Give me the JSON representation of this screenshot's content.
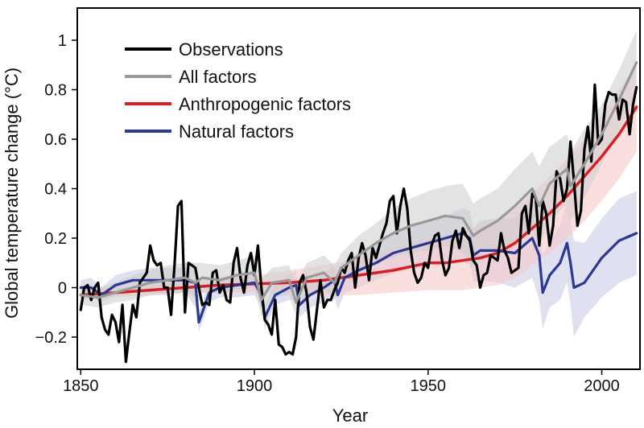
{
  "chart_data": {
    "type": "line",
    "xlabel": "Year",
    "ylabel": "Global temperature change (°C)",
    "xlim": [
      1849,
      2011
    ],
    "ylim": [
      -0.33,
      1.13
    ],
    "x_ticks": [
      1850,
      1900,
      1950,
      2000
    ],
    "x_tick_labels": [
      "1850",
      "1900",
      "1950",
      "2000"
    ],
    "y_ticks": [
      -0.2,
      0,
      0.2,
      0.4,
      0.6,
      0.8,
      1
    ],
    "y_tick_labels": [
      "−0.2",
      "0",
      "0.2",
      "0.4",
      "0.6",
      "0.8",
      "1"
    ],
    "legend_position": "top-left",
    "legend": [
      "Observations",
      "All factors",
      "Anthropogenic factors",
      "Natural factors"
    ],
    "series": [
      {
        "name": "Observations",
        "color": "#000000",
        "x": [
          1850,
          1851,
          1852,
          1853,
          1854,
          1855,
          1856,
          1857,
          1858,
          1859,
          1860,
          1861,
          1862,
          1863,
          1864,
          1865,
          1866,
          1867,
          1868,
          1869,
          1870,
          1871,
          1872,
          1873,
          1874,
          1875,
          1876,
          1877,
          1878,
          1879,
          1880,
          1881,
          1882,
          1883,
          1884,
          1885,
          1886,
          1887,
          1888,
          1889,
          1890,
          1891,
          1892,
          1893,
          1894,
          1895,
          1896,
          1897,
          1898,
          1899,
          1900,
          1901,
          1902,
          1903,
          1904,
          1905,
          1906,
          1907,
          1908,
          1909,
          1910,
          1911,
          1912,
          1913,
          1914,
          1915,
          1916,
          1917,
          1918,
          1919,
          1920,
          1921,
          1922,
          1923,
          1924,
          1925,
          1926,
          1927,
          1928,
          1929,
          1930,
          1931,
          1932,
          1933,
          1934,
          1935,
          1936,
          1937,
          1938,
          1939,
          1940,
          1941,
          1942,
          1943,
          1944,
          1945,
          1946,
          1947,
          1948,
          1949,
          1950,
          1951,
          1952,
          1953,
          1954,
          1955,
          1956,
          1957,
          1958,
          1959,
          1960,
          1961,
          1962,
          1963,
          1964,
          1965,
          1966,
          1967,
          1968,
          1969,
          1970,
          1971,
          1972,
          1973,
          1974,
          1975,
          1976,
          1977,
          1978,
          1979,
          1980,
          1981,
          1982,
          1983,
          1984,
          1985,
          1986,
          1987,
          1988,
          1989,
          1990,
          1991,
          1992,
          1993,
          1994,
          1995,
          1996,
          1997,
          1998,
          1999,
          2000,
          2001,
          2002,
          2003,
          2004,
          2005,
          2006,
          2007,
          2008,
          2009,
          2010
        ],
        "values": [
          -0.09,
          0.0,
          0.01,
          -0.05,
          0.0,
          0.02,
          -0.12,
          -0.17,
          -0.19,
          -0.11,
          -0.14,
          -0.22,
          -0.07,
          -0.3,
          -0.18,
          -0.07,
          -0.12,
          0.02,
          0.04,
          0.06,
          0.17,
          0.11,
          0.09,
          0.1,
          0.0,
          0.0,
          -0.11,
          0.09,
          0.33,
          0.35,
          -0.1,
          0.1,
          0.09,
          0.08,
          0.0,
          -0.07,
          -0.06,
          -0.07,
          0.06,
          0.07,
          -0.02,
          0.01,
          -0.05,
          -0.06,
          0.1,
          0.16,
          0.04,
          -0.02,
          0.09,
          0.14,
          0.05,
          0.17,
          0.0,
          -0.13,
          -0.15,
          -0.19,
          -0.05,
          -0.23,
          -0.24,
          -0.27,
          -0.26,
          -0.27,
          -0.2,
          0.02,
          0.05,
          -0.02,
          -0.16,
          -0.21,
          -0.09,
          0.03,
          -0.08,
          -0.05,
          -0.05,
          -0.01,
          0.02,
          0.08,
          0.06,
          0.11,
          0.14,
          0.0,
          0.12,
          0.18,
          0.13,
          0.03,
          0.16,
          0.12,
          0.17,
          0.22,
          0.26,
          0.35,
          0.37,
          0.22,
          0.33,
          0.4,
          0.32,
          0.15,
          0.06,
          0.02,
          0.04,
          0.1,
          0.08,
          0.17,
          0.21,
          0.22,
          0.11,
          0.05,
          0.08,
          0.19,
          0.23,
          0.16,
          0.24,
          0.21,
          0.19,
          0.11,
          0.09,
          0.0,
          0.05,
          0.06,
          0.13,
          0.12,
          0.11,
          0.22,
          0.15,
          0.12,
          0.06,
          0.07,
          0.08,
          0.3,
          0.33,
          0.22,
          0.38,
          0.36,
          0.17,
          0.35,
          0.3,
          0.17,
          0.25,
          0.47,
          0.44,
          0.35,
          0.4,
          0.59,
          0.43,
          0.25,
          0.31,
          0.56,
          0.65,
          0.51,
          0.82,
          0.58,
          0.6,
          0.74,
          0.79,
          0.78,
          0.78,
          0.68,
          0.76,
          0.75,
          0.62,
          0.74,
          0.81
        ]
      },
      {
        "name": "All factors",
        "color": "#999999",
        "band_color": "#cccccc",
        "x": [
          1850,
          1855,
          1860,
          1865,
          1870,
          1875,
          1880,
          1883,
          1885,
          1890,
          1895,
          1900,
          1902,
          1905,
          1910,
          1912,
          1915,
          1920,
          1923,
          1925,
          1930,
          1935,
          1940,
          1945,
          1950,
          1955,
          1960,
          1963,
          1965,
          1970,
          1975,
          1980,
          1982,
          1985,
          1990,
          1991,
          1995,
          2000,
          2005,
          2010
        ],
        "values": [
          -0.03,
          -0.04,
          -0.02,
          0.0,
          0.02,
          0.03,
          0.04,
          0.02,
          0.04,
          0.03,
          0.05,
          0.06,
          -0.05,
          0.02,
          0.03,
          -0.06,
          0.04,
          0.06,
          0.02,
          0.08,
          0.13,
          0.18,
          0.22,
          0.25,
          0.27,
          0.29,
          0.28,
          0.21,
          0.23,
          0.27,
          0.33,
          0.4,
          0.33,
          0.42,
          0.48,
          0.41,
          0.5,
          0.62,
          0.76,
          0.91
        ],
        "band_lower": [
          -0.07,
          -0.08,
          -0.06,
          -0.05,
          -0.03,
          -0.03,
          -0.02,
          -0.08,
          -0.02,
          -0.02,
          -0.01,
          0.0,
          -0.12,
          -0.04,
          -0.03,
          -0.12,
          -0.02,
          -0.01,
          -0.05,
          0.02,
          0.05,
          0.1,
          0.12,
          0.14,
          0.15,
          0.17,
          0.14,
          0.08,
          0.1,
          0.14,
          0.18,
          0.25,
          0.17,
          0.27,
          0.34,
          0.27,
          0.36,
          0.5,
          0.64,
          0.78
        ],
        "band_upper": [
          0.01,
          0.0,
          0.02,
          0.05,
          0.07,
          0.09,
          0.1,
          0.1,
          0.1,
          0.09,
          0.11,
          0.13,
          0.03,
          0.08,
          0.09,
          0.01,
          0.1,
          0.13,
          0.09,
          0.14,
          0.21,
          0.26,
          0.32,
          0.36,
          0.39,
          0.41,
          0.42,
          0.34,
          0.36,
          0.4,
          0.48,
          0.55,
          0.49,
          0.57,
          0.62,
          0.55,
          0.64,
          0.74,
          0.88,
          1.04
        ]
      },
      {
        "name": "Anthropogenic factors",
        "color": "#d91f26",
        "band_color": "#f7c9c9",
        "x": [
          1850,
          1860,
          1870,
          1880,
          1890,
          1900,
          1910,
          1920,
          1930,
          1940,
          1950,
          1955,
          1960,
          1965,
          1970,
          1975,
          1980,
          1985,
          1990,
          1995,
          2000,
          2005,
          2010
        ],
        "values": [
          -0.03,
          -0.02,
          -0.01,
          0.0,
          0.01,
          0.015,
          0.02,
          0.03,
          0.05,
          0.07,
          0.1,
          0.1,
          0.11,
          0.12,
          0.14,
          0.18,
          0.24,
          0.3,
          0.37,
          0.45,
          0.53,
          0.62,
          0.73
        ],
        "band_lower": [
          -0.05,
          -0.04,
          -0.03,
          -0.02,
          -0.02,
          -0.02,
          -0.02,
          -0.03,
          -0.03,
          -0.02,
          -0.01,
          -0.01,
          -0.01,
          0.0,
          0.01,
          0.04,
          0.09,
          0.14,
          0.2,
          0.27,
          0.35,
          0.44,
          0.55
        ],
        "band_upper": [
          -0.01,
          0.0,
          0.01,
          0.02,
          0.04,
          0.05,
          0.07,
          0.09,
          0.12,
          0.16,
          0.2,
          0.21,
          0.23,
          0.25,
          0.27,
          0.32,
          0.38,
          0.45,
          0.52,
          0.6,
          0.7,
          0.8,
          0.9
        ]
      },
      {
        "name": "Natural factors",
        "color": "#2b3894",
        "band_color": "#c9cbe6",
        "x": [
          1850,
          1853,
          1856,
          1860,
          1865,
          1870,
          1875,
          1880,
          1883,
          1884,
          1887,
          1890,
          1895,
          1900,
          1902,
          1903,
          1906,
          1910,
          1912,
          1913,
          1916,
          1920,
          1923,
          1924,
          1926,
          1930,
          1935,
          1940,
          1945,
          1950,
          1955,
          1960,
          1962,
          1963,
          1965,
          1970,
          1975,
          1980,
          1982,
          1983,
          1985,
          1988,
          1990,
          1991,
          1992,
          1995,
          2000,
          2005,
          2010
        ],
        "values": [
          0.0,
          0.0,
          -0.03,
          0.01,
          0.03,
          0.03,
          0.03,
          0.03,
          0.02,
          -0.14,
          -0.02,
          0.0,
          0.01,
          0.02,
          -0.03,
          -0.12,
          -0.03,
          0.0,
          0.01,
          -0.07,
          -0.03,
          0.0,
          0.03,
          -0.03,
          0.04,
          0.07,
          0.1,
          0.14,
          0.16,
          0.18,
          0.2,
          0.22,
          0.2,
          0.13,
          0.15,
          0.15,
          0.14,
          0.2,
          0.13,
          -0.02,
          0.05,
          0.1,
          0.18,
          0.1,
          0.0,
          0.02,
          0.12,
          0.19,
          0.22
        ],
        "band_lower": [
          -0.03,
          -0.04,
          -0.06,
          -0.03,
          -0.02,
          -0.02,
          -0.02,
          -0.02,
          -0.04,
          -0.18,
          -0.06,
          -0.04,
          -0.04,
          -0.03,
          -0.08,
          -0.17,
          -0.07,
          -0.05,
          -0.05,
          -0.12,
          -0.08,
          -0.06,
          -0.03,
          -0.09,
          -0.02,
          0.0,
          0.03,
          0.06,
          0.07,
          0.09,
          0.1,
          0.11,
          0.09,
          0.02,
          0.03,
          0.02,
          0.0,
          0.04,
          -0.05,
          -0.17,
          -0.08,
          -0.05,
          0.02,
          -0.07,
          -0.2,
          -0.12,
          -0.04,
          0.02,
          0.05
        ],
        "band_upper": [
          0.03,
          0.04,
          0.0,
          0.05,
          0.07,
          0.08,
          0.08,
          0.08,
          0.08,
          -0.1,
          0.03,
          0.04,
          0.06,
          0.07,
          0.02,
          -0.07,
          0.02,
          0.05,
          0.07,
          -0.02,
          0.03,
          0.06,
          0.09,
          0.03,
          0.1,
          0.14,
          0.18,
          0.22,
          0.25,
          0.27,
          0.29,
          0.32,
          0.31,
          0.24,
          0.27,
          0.28,
          0.28,
          0.36,
          0.31,
          0.13,
          0.19,
          0.25,
          0.35,
          0.27,
          0.19,
          0.18,
          0.28,
          0.36,
          0.39
        ]
      }
    ]
  }
}
